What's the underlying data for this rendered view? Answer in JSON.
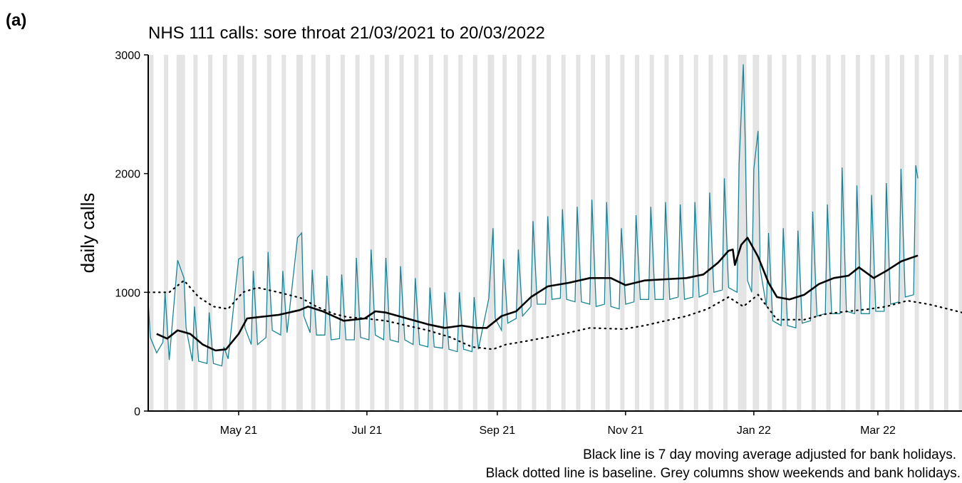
{
  "panel_label": "(a)",
  "chart_data": {
    "type": "line",
    "title": "NHS 111 calls: sore throat 21/03/2021 to 20/03/2022",
    "ylabel": "daily calls",
    "xlabel": "",
    "x_range": [
      "2021-03-19",
      "2022-04-10"
    ],
    "ylim": [
      0,
      3000
    ],
    "y_ticks": [
      0,
      1000,
      2000,
      3000
    ],
    "x_ticks": [
      {
        "date": "2021-05-01",
        "label": "May 21"
      },
      {
        "date": "2021-07-01",
        "label": "Jul 21"
      },
      {
        "date": "2021-09-01",
        "label": "Sep 21"
      },
      {
        "date": "2021-11-01",
        "label": "Nov 21"
      },
      {
        "date": "2022-01-01",
        "label": "Jan 22"
      },
      {
        "date": "2022-03-01",
        "label": "Mar 22"
      }
    ],
    "grey_columns": "weekends and bank holidays",
    "bank_holidays": [
      "2021-04-02",
      "2021-04-05",
      "2021-05-03",
      "2021-05-31",
      "2021-08-30",
      "2021-12-27",
      "2021-12-28",
      "2022-01-03"
    ],
    "colors": {
      "daily": "#1a8496",
      "moving_average": "#000000",
      "baseline": "#000000",
      "columns": "#e3e3e3"
    },
    "series": [
      {
        "key": "daily",
        "style": "thin teal line",
        "points": [
          [
            "2021-03-19",
            920
          ],
          [
            "2021-03-20",
            620
          ],
          [
            "2021-03-23",
            490
          ],
          [
            "2021-03-26",
            580
          ],
          [
            "2021-03-27",
            1000
          ],
          [
            "2021-03-29",
            430
          ],
          [
            "2021-04-02",
            1270
          ],
          [
            "2021-04-05",
            1120
          ],
          [
            "2021-04-06",
            700
          ],
          [
            "2021-04-09",
            420
          ],
          [
            "2021-04-10",
            880
          ],
          [
            "2021-04-12",
            420
          ],
          [
            "2021-04-16",
            400
          ],
          [
            "2021-04-17",
            830
          ],
          [
            "2021-04-19",
            400
          ],
          [
            "2021-04-23",
            380
          ],
          [
            "2021-04-24",
            540
          ],
          [
            "2021-04-26",
            440
          ],
          [
            "2021-05-01",
            1280
          ],
          [
            "2021-05-03",
            1300
          ],
          [
            "2021-05-04",
            700
          ],
          [
            "2021-05-07",
            560
          ],
          [
            "2021-05-08",
            1180
          ],
          [
            "2021-05-10",
            560
          ],
          [
            "2021-05-14",
            620
          ],
          [
            "2021-05-15",
            1340
          ],
          [
            "2021-05-17",
            680
          ],
          [
            "2021-05-21",
            640
          ],
          [
            "2021-05-22",
            1180
          ],
          [
            "2021-05-24",
            660
          ],
          [
            "2021-05-29",
            1460
          ],
          [
            "2021-05-31",
            1500
          ],
          [
            "2021-06-01",
            800
          ],
          [
            "2021-06-04",
            660
          ],
          [
            "2021-06-05",
            1190
          ],
          [
            "2021-06-07",
            640
          ],
          [
            "2021-06-11",
            640
          ],
          [
            "2021-06-12",
            1140
          ],
          [
            "2021-06-14",
            600
          ],
          [
            "2021-06-18",
            610
          ],
          [
            "2021-06-19",
            1150
          ],
          [
            "2021-06-21",
            600
          ],
          [
            "2021-06-25",
            600
          ],
          [
            "2021-06-26",
            1290
          ],
          [
            "2021-06-28",
            620
          ],
          [
            "2021-07-02",
            600
          ],
          [
            "2021-07-03",
            1360
          ],
          [
            "2021-07-05",
            640
          ],
          [
            "2021-07-09",
            600
          ],
          [
            "2021-07-10",
            1290
          ],
          [
            "2021-07-12",
            600
          ],
          [
            "2021-07-16",
            580
          ],
          [
            "2021-07-17",
            1220
          ],
          [
            "2021-07-19",
            600
          ],
          [
            "2021-07-23",
            560
          ],
          [
            "2021-07-24",
            1120
          ],
          [
            "2021-07-26",
            560
          ],
          [
            "2021-07-30",
            540
          ],
          [
            "2021-07-31",
            1040
          ],
          [
            "2021-08-02",
            540
          ],
          [
            "2021-08-06",
            530
          ],
          [
            "2021-08-07",
            1000
          ],
          [
            "2021-08-09",
            520
          ],
          [
            "2021-08-13",
            500
          ],
          [
            "2021-08-14",
            1000
          ],
          [
            "2021-08-16",
            520
          ],
          [
            "2021-08-20",
            500
          ],
          [
            "2021-08-21",
            960
          ],
          [
            "2021-08-23",
            520
          ],
          [
            "2021-08-28",
            950
          ],
          [
            "2021-08-30",
            1540
          ],
          [
            "2021-08-31",
            780
          ],
          [
            "2021-09-03",
            680
          ],
          [
            "2021-09-04",
            1280
          ],
          [
            "2021-09-06",
            740
          ],
          [
            "2021-09-10",
            780
          ],
          [
            "2021-09-11",
            1360
          ],
          [
            "2021-09-13",
            800
          ],
          [
            "2021-09-17",
            880
          ],
          [
            "2021-09-18",
            1600
          ],
          [
            "2021-09-20",
            900
          ],
          [
            "2021-09-24",
            900
          ],
          [
            "2021-09-25",
            1640
          ],
          [
            "2021-09-27",
            940
          ],
          [
            "2021-10-01",
            950
          ],
          [
            "2021-10-02",
            1700
          ],
          [
            "2021-10-04",
            940
          ],
          [
            "2021-10-08",
            920
          ],
          [
            "2021-10-09",
            1720
          ],
          [
            "2021-10-11",
            920
          ],
          [
            "2021-10-15",
            900
          ],
          [
            "2021-10-16",
            1780
          ],
          [
            "2021-10-18",
            880
          ],
          [
            "2021-10-22",
            900
          ],
          [
            "2021-10-23",
            1760
          ],
          [
            "2021-10-25",
            880
          ],
          [
            "2021-10-29",
            860
          ],
          [
            "2021-10-30",
            1540
          ],
          [
            "2021-11-01",
            900
          ],
          [
            "2021-11-05",
            920
          ],
          [
            "2021-11-06",
            1650
          ],
          [
            "2021-11-08",
            940
          ],
          [
            "2021-11-12",
            940
          ],
          [
            "2021-11-13",
            1720
          ],
          [
            "2021-11-15",
            940
          ],
          [
            "2021-11-19",
            940
          ],
          [
            "2021-11-20",
            1760
          ],
          [
            "2021-11-22",
            940
          ],
          [
            "2021-11-26",
            960
          ],
          [
            "2021-11-27",
            1740
          ],
          [
            "2021-11-29",
            940
          ],
          [
            "2021-12-03",
            960
          ],
          [
            "2021-12-04",
            1760
          ],
          [
            "2021-12-06",
            960
          ],
          [
            "2021-12-10",
            990
          ],
          [
            "2021-12-11",
            1840
          ],
          [
            "2021-12-13",
            1000
          ],
          [
            "2021-12-17",
            1020
          ],
          [
            "2021-12-18",
            1960
          ],
          [
            "2021-12-20",
            1040
          ],
          [
            "2021-12-24",
            1000
          ],
          [
            "2021-12-25",
            2080
          ],
          [
            "2021-12-27",
            2920
          ],
          [
            "2021-12-28",
            2200
          ],
          [
            "2021-12-29",
            1100
          ],
          [
            "2021-12-31",
            1000
          ],
          [
            "2022-01-01",
            2040
          ],
          [
            "2022-01-03",
            2360
          ],
          [
            "2022-01-04",
            1200
          ],
          [
            "2022-01-07",
            880
          ],
          [
            "2022-01-08",
            1500
          ],
          [
            "2022-01-10",
            760
          ],
          [
            "2022-01-14",
            720
          ],
          [
            "2022-01-15",
            1540
          ],
          [
            "2022-01-17",
            720
          ],
          [
            "2022-01-21",
            700
          ],
          [
            "2022-01-22",
            1520
          ],
          [
            "2022-01-24",
            740
          ],
          [
            "2022-01-28",
            760
          ],
          [
            "2022-01-29",
            1680
          ],
          [
            "2022-01-31",
            800
          ],
          [
            "2022-02-04",
            820
          ],
          [
            "2022-02-05",
            1740
          ],
          [
            "2022-02-07",
            820
          ],
          [
            "2022-02-11",
            820
          ],
          [
            "2022-02-12",
            2050
          ],
          [
            "2022-02-14",
            840
          ],
          [
            "2022-02-18",
            820
          ],
          [
            "2022-02-19",
            1900
          ],
          [
            "2022-02-21",
            820
          ],
          [
            "2022-02-25",
            820
          ],
          [
            "2022-02-26",
            1820
          ],
          [
            "2022-02-28",
            840
          ],
          [
            "2022-03-04",
            840
          ],
          [
            "2022-03-05",
            1920
          ],
          [
            "2022-03-07",
            900
          ],
          [
            "2022-03-11",
            920
          ],
          [
            "2022-03-12",
            2040
          ],
          [
            "2022-03-14",
            960
          ],
          [
            "2022-03-18",
            980
          ],
          [
            "2022-03-19",
            2070
          ],
          [
            "2022-03-20",
            1960
          ]
        ]
      },
      {
        "key": "moving_average",
        "style": "thick black line",
        "points": [
          [
            "2021-03-23",
            650
          ],
          [
            "2021-03-28",
            610
          ],
          [
            "2021-04-02",
            680
          ],
          [
            "2021-04-08",
            650
          ],
          [
            "2021-04-14",
            560
          ],
          [
            "2021-04-20",
            510
          ],
          [
            "2021-04-25",
            520
          ],
          [
            "2021-05-01",
            650
          ],
          [
            "2021-05-05",
            780
          ],
          [
            "2021-05-10",
            790
          ],
          [
            "2021-05-20",
            810
          ],
          [
            "2021-05-30",
            850
          ],
          [
            "2021-06-03",
            880
          ],
          [
            "2021-06-10",
            840
          ],
          [
            "2021-06-20",
            760
          ],
          [
            "2021-06-30",
            780
          ],
          [
            "2021-07-05",
            840
          ],
          [
            "2021-07-10",
            830
          ],
          [
            "2021-07-20",
            780
          ],
          [
            "2021-07-30",
            730
          ],
          [
            "2021-08-07",
            700
          ],
          [
            "2021-08-15",
            720
          ],
          [
            "2021-08-22",
            700
          ],
          [
            "2021-08-27",
            700
          ],
          [
            "2021-09-03",
            800
          ],
          [
            "2021-09-10",
            840
          ],
          [
            "2021-09-17",
            960
          ],
          [
            "2021-09-25",
            1050
          ],
          [
            "2021-10-05",
            1080
          ],
          [
            "2021-10-15",
            1120
          ],
          [
            "2021-10-25",
            1120
          ],
          [
            "2021-11-01",
            1060
          ],
          [
            "2021-11-10",
            1100
          ],
          [
            "2021-11-20",
            1110
          ],
          [
            "2021-11-30",
            1120
          ],
          [
            "2021-12-08",
            1150
          ],
          [
            "2021-12-15",
            1250
          ],
          [
            "2021-12-20",
            1350
          ],
          [
            "2021-12-22",
            1360
          ],
          [
            "2021-12-23",
            1230
          ],
          [
            "2021-12-26",
            1400
          ],
          [
            "2021-12-29",
            1460
          ],
          [
            "2022-01-03",
            1300
          ],
          [
            "2022-01-08",
            1080
          ],
          [
            "2022-01-12",
            960
          ],
          [
            "2022-01-18",
            940
          ],
          [
            "2022-01-25",
            980
          ],
          [
            "2022-02-01",
            1070
          ],
          [
            "2022-02-08",
            1120
          ],
          [
            "2022-02-15",
            1140
          ],
          [
            "2022-02-20",
            1210
          ],
          [
            "2022-02-27",
            1120
          ],
          [
            "2022-03-05",
            1180
          ],
          [
            "2022-03-12",
            1260
          ],
          [
            "2022-03-20",
            1310
          ]
        ]
      },
      {
        "key": "baseline",
        "style": "black dotted line",
        "points": [
          [
            "2021-03-19",
            1000
          ],
          [
            "2021-03-29",
            1000
          ],
          [
            "2021-04-05",
            1100
          ],
          [
            "2021-04-12",
            960
          ],
          [
            "2021-04-19",
            880
          ],
          [
            "2021-04-26",
            860
          ],
          [
            "2021-05-03",
            1000
          ],
          [
            "2021-05-10",
            1040
          ],
          [
            "2021-05-20",
            1000
          ],
          [
            "2021-05-31",
            950
          ],
          [
            "2021-06-07",
            880
          ],
          [
            "2021-06-15",
            820
          ],
          [
            "2021-06-22",
            790
          ],
          [
            "2021-06-30",
            780
          ],
          [
            "2021-07-10",
            760
          ],
          [
            "2021-07-20",
            720
          ],
          [
            "2021-07-30",
            680
          ],
          [
            "2021-08-10",
            620
          ],
          [
            "2021-08-20",
            540
          ],
          [
            "2021-08-30",
            520
          ],
          [
            "2021-09-05",
            560
          ],
          [
            "2021-09-15",
            590
          ],
          [
            "2021-09-30",
            640
          ],
          [
            "2021-10-15",
            700
          ],
          [
            "2021-10-31",
            690
          ],
          [
            "2021-11-10",
            720
          ],
          [
            "2021-11-20",
            760
          ],
          [
            "2021-11-30",
            800
          ],
          [
            "2021-12-10",
            860
          ],
          [
            "2021-12-20",
            960
          ],
          [
            "2021-12-27",
            880
          ],
          [
            "2022-01-03",
            980
          ],
          [
            "2022-01-12",
            770
          ],
          [
            "2022-01-25",
            770
          ],
          [
            "2022-02-05",
            820
          ],
          [
            "2022-02-15",
            840
          ],
          [
            "2022-02-25",
            860
          ],
          [
            "2022-03-05",
            880
          ],
          [
            "2022-03-15",
            930
          ],
          [
            "2022-03-25",
            900
          ],
          [
            "2022-04-01",
            870
          ],
          [
            "2022-04-10",
            830
          ]
        ]
      }
    ]
  },
  "footnotes": [
    "Black line is 7 day moving average adjusted for bank holidays.",
    "Black dotted line is baseline. Grey columns show weekends and bank holidays."
  ]
}
